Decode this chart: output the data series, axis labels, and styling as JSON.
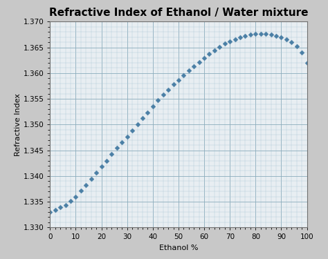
{
  "title": "Refractive Index of Ethanol / Water mixture",
  "xlabel": "Ethanol %",
  "ylabel": "Refractive Index",
  "xlim": [
    0,
    100
  ],
  "ylim": [
    1.33,
    1.37
  ],
  "yticks": [
    1.33,
    1.335,
    1.34,
    1.345,
    1.35,
    1.355,
    1.36,
    1.365,
    1.37
  ],
  "xticks": [
    0,
    10,
    20,
    30,
    40,
    50,
    60,
    70,
    80,
    90,
    100
  ],
  "x": [
    0,
    2,
    4,
    6,
    8,
    10,
    12,
    14,
    16,
    18,
    20,
    22,
    24,
    26,
    28,
    30,
    32,
    34,
    36,
    38,
    40,
    42,
    44,
    46,
    48,
    50,
    52,
    54,
    56,
    58,
    60,
    62,
    64,
    66,
    68,
    70,
    72,
    74,
    76,
    78,
    80,
    82,
    84,
    86,
    88,
    90,
    92,
    94,
    96,
    98,
    100
  ],
  "y": [
    1.333,
    1.3334,
    1.3339,
    1.3344,
    1.3351,
    1.336,
    1.3371,
    1.3382,
    1.3394,
    1.3406,
    1.3418,
    1.343,
    1.3443,
    1.3455,
    1.3466,
    1.3477,
    1.3489,
    1.3501,
    1.3512,
    1.3524,
    1.3536,
    1.3547,
    1.3558,
    1.3568,
    1.3578,
    1.3587,
    1.3596,
    1.3605,
    1.3613,
    1.3621,
    1.3629,
    1.3637,
    1.3644,
    1.3651,
    1.3657,
    1.3662,
    1.3666,
    1.367,
    1.3673,
    1.3675,
    1.3677,
    1.3677,
    1.3676,
    1.3675,
    1.3673,
    1.367,
    1.3666,
    1.366,
    1.3652,
    1.364,
    1.362
  ],
  "marker_color": "#4a7fa5",
  "marker": "D",
  "marker_size": 3.5,
  "line_color": "#4a7fa5",
  "bg_color": "#c8c8c8",
  "plot_bg_color": "#e8eef2",
  "grid_major_color": "#8aacbc",
  "grid_minor_color": "#b0c8d8",
  "title_fontsize": 11,
  "label_fontsize": 8,
  "tick_fontsize": 7.5
}
